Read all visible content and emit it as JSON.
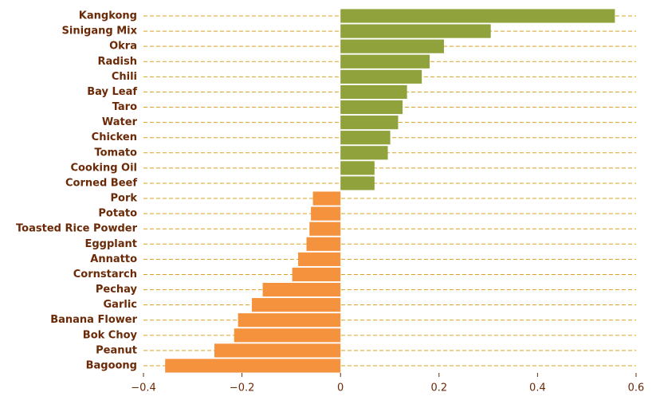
{
  "chart_data": {
    "type": "bar",
    "orientation": "horizontal",
    "title": "",
    "xlabel": "",
    "ylabel": "",
    "xlim": [
      -0.4,
      0.6
    ],
    "xticks": [
      -0.4,
      -0.2,
      0,
      0.2,
      0.4,
      0.6
    ],
    "xtick_labels": [
      "−0.4",
      "−0.2",
      "0",
      "0.2",
      "0.4",
      "0.6"
    ],
    "grid": "horizontal dashed",
    "colors": {
      "positive": "#8fa23c",
      "negative": "#f5923e",
      "grid": "#d9a020",
      "text": "#6b2a07"
    },
    "categories": [
      "Kangkong",
      "Sinigang Mix",
      "Okra",
      "Radish",
      "Chili",
      "Bay Leaf",
      "Taro",
      "Water",
      "Chicken",
      "Tomato",
      "Cooking Oil",
      "Corned Beef",
      "Pork",
      "Potato",
      "Toasted Rice Powder",
      "Eggplant",
      "Annatto",
      "Cornstarch",
      "Pechay",
      "Garlic",
      "Banana Flower",
      "Bok Choy",
      "Peanut",
      "Bagoong"
    ],
    "values": [
      0.557,
      0.305,
      0.21,
      0.181,
      0.165,
      0.135,
      0.126,
      0.117,
      0.101,
      0.096,
      0.069,
      0.069,
      -0.056,
      -0.06,
      -0.063,
      -0.069,
      -0.086,
      -0.098,
      -0.158,
      -0.18,
      -0.208,
      -0.216,
      -0.256,
      -0.356
    ]
  }
}
